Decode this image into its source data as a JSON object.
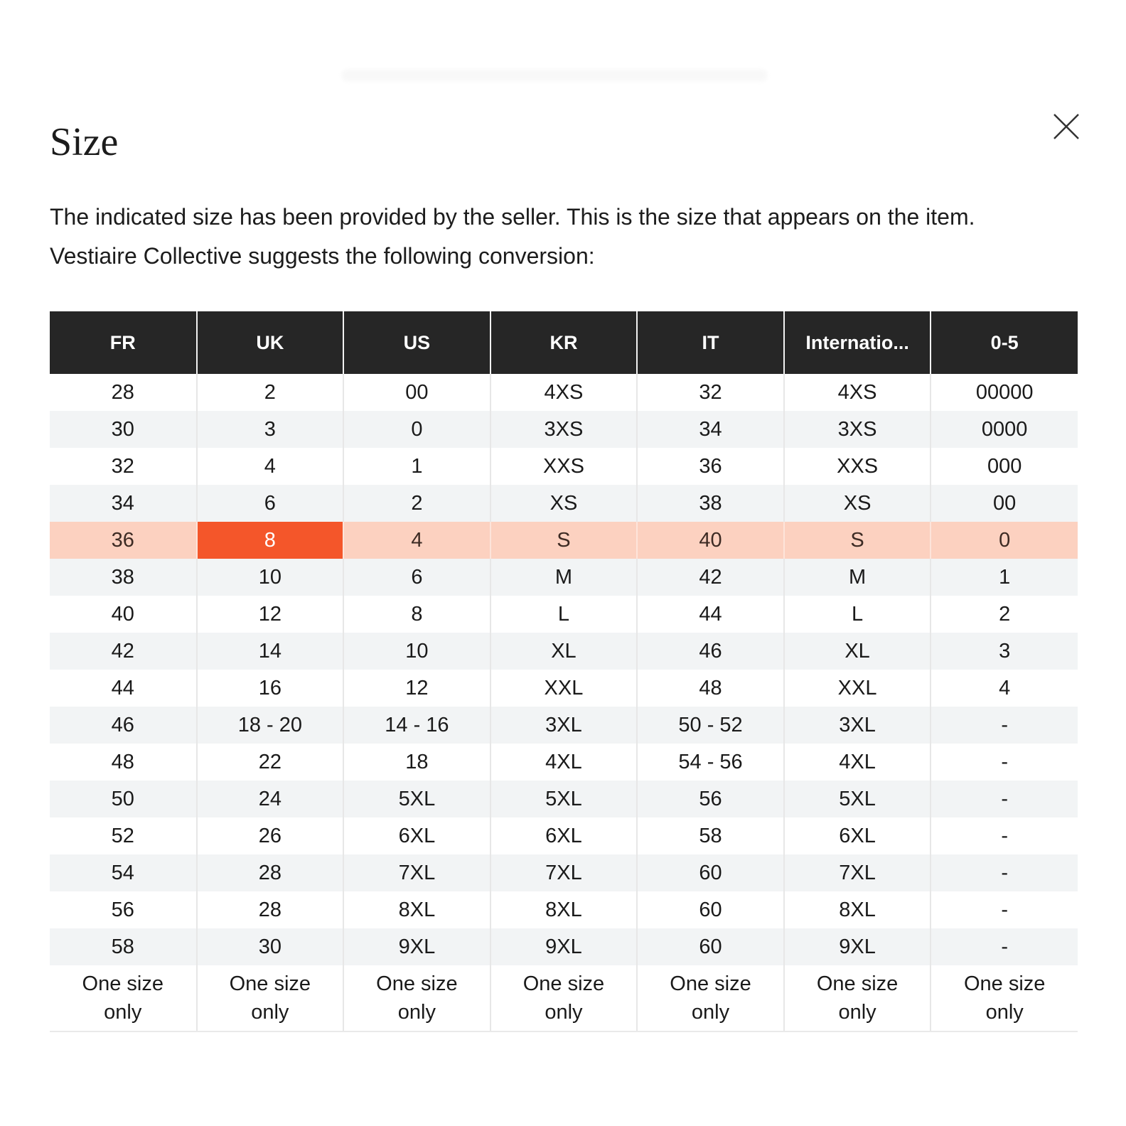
{
  "modal": {
    "title": "Size",
    "description": "The indicated size has been provided by the seller. This is the size that appears on the item. Vestiaire Collective suggests the following conversion:",
    "close_label": "Close"
  },
  "table": {
    "headers": [
      "FR",
      "UK",
      "US",
      "KR",
      "IT",
      "Internatio...",
      "0-5"
    ],
    "rows": [
      [
        "28",
        "2",
        "00",
        "4XS",
        "32",
        "4XS",
        "00000"
      ],
      [
        "30",
        "3",
        "0",
        "3XS",
        "34",
        "3XS",
        "0000"
      ],
      [
        "32",
        "4",
        "1",
        "XXS",
        "36",
        "XXS",
        "000"
      ],
      [
        "34",
        "6",
        "2",
        "XS",
        "38",
        "XS",
        "00"
      ],
      [
        "36",
        "8",
        "4",
        "S",
        "40",
        "S",
        "0"
      ],
      [
        "38",
        "10",
        "6",
        "M",
        "42",
        "M",
        "1"
      ],
      [
        "40",
        "12",
        "8",
        "L",
        "44",
        "L",
        "2"
      ],
      [
        "42",
        "14",
        "10",
        "XL",
        "46",
        "XL",
        "3"
      ],
      [
        "44",
        "16",
        "12",
        "XXL",
        "48",
        "XXL",
        "4"
      ],
      [
        "46",
        "18 - 20",
        "14 - 16",
        "3XL",
        "50 - 52",
        "3XL",
        "-"
      ],
      [
        "48",
        "22",
        "18",
        "4XL",
        "54 - 56",
        "4XL",
        "-"
      ],
      [
        "50",
        "24",
        "5XL",
        "5XL",
        "56",
        "5XL",
        "-"
      ],
      [
        "52",
        "26",
        "6XL",
        "6XL",
        "58",
        "6XL",
        "-"
      ],
      [
        "54",
        "28",
        "7XL",
        "7XL",
        "60",
        "7XL",
        "-"
      ],
      [
        "56",
        "28",
        "8XL",
        "8XL",
        "60",
        "8XL",
        "-"
      ],
      [
        "58",
        "30",
        "9XL",
        "9XL",
        "60",
        "9XL",
        "-"
      ],
      [
        "One size only",
        "One size only",
        "One size only",
        "One size only",
        "One size only",
        "One size only",
        "One size only"
      ]
    ],
    "highlighted_row": 4,
    "selected_cell": {
      "row": 4,
      "col": 1
    },
    "one_size_row": 16
  },
  "colors": {
    "accent": "#f4562a",
    "highlight_bg": "#fcd1c0",
    "header_bg": "#262626",
    "header_text": "#ffffff",
    "alt_row_bg": "#f2f4f5"
  }
}
